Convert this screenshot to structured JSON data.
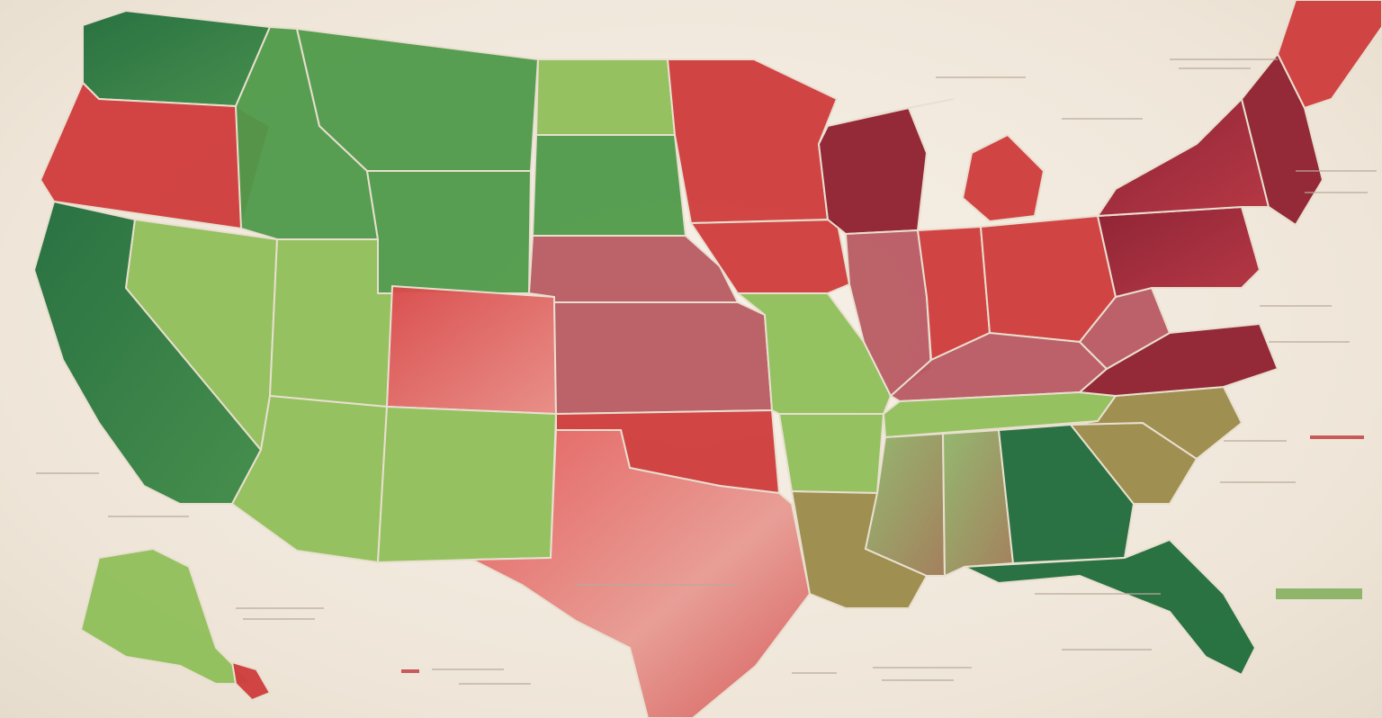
{
  "map": {
    "title": "",
    "subtitle": "",
    "colors": {
      "deep_green": "#1f6b3a",
      "mid_green": "#4f9a4a",
      "light_green": "#8fbf5a",
      "olive": "#9a8a48",
      "deep_red": "#8e1f2e",
      "mid_red": "#cf3b3b",
      "rose": "#b85a62",
      "background": "#f3ece2"
    },
    "states": [
      {
        "id": "WA",
        "fill": "deep_green"
      },
      {
        "id": "OR",
        "fill": "mid_red"
      },
      {
        "id": "CA",
        "fill": "deep_green"
      },
      {
        "id": "NV",
        "fill": "light_green"
      },
      {
        "id": "ID",
        "fill": "mid_green"
      },
      {
        "id": "MT",
        "fill": "mid_green"
      },
      {
        "id": "WY",
        "fill": "mid_green"
      },
      {
        "id": "UT",
        "fill": "light_green"
      },
      {
        "id": "CO",
        "fill": "mid_red"
      },
      {
        "id": "AZ",
        "fill": "light_green"
      },
      {
        "id": "NM",
        "fill": "light_green"
      },
      {
        "id": "ND",
        "fill": "light_green"
      },
      {
        "id": "SD",
        "fill": "mid_green"
      },
      {
        "id": "NE",
        "fill": "rose"
      },
      {
        "id": "KS",
        "fill": "rose"
      },
      {
        "id": "OK",
        "fill": "mid_red"
      },
      {
        "id": "TX",
        "fill": "mid_red"
      },
      {
        "id": "MN",
        "fill": "mid_red"
      },
      {
        "id": "IA",
        "fill": "mid_red"
      },
      {
        "id": "MO",
        "fill": "light_green"
      },
      {
        "id": "AR",
        "fill": "light_green"
      },
      {
        "id": "LA",
        "fill": "olive"
      },
      {
        "id": "WI",
        "fill": "deep_red"
      },
      {
        "id": "IL",
        "fill": "rose"
      },
      {
        "id": "MI",
        "fill": "mid_red"
      },
      {
        "id": "IN",
        "fill": "mid_red"
      },
      {
        "id": "OH",
        "fill": "mid_red"
      },
      {
        "id": "KY",
        "fill": "rose"
      },
      {
        "id": "TN",
        "fill": "light_green"
      },
      {
        "id": "MS",
        "fill": "olive"
      },
      {
        "id": "AL",
        "fill": "olive"
      },
      {
        "id": "GA",
        "fill": "deep_green"
      },
      {
        "id": "FL",
        "fill": "deep_green"
      },
      {
        "id": "SC",
        "fill": "olive"
      },
      {
        "id": "NC",
        "fill": "olive"
      },
      {
        "id": "VA",
        "fill": "deep_red"
      },
      {
        "id": "WV",
        "fill": "rose"
      },
      {
        "id": "PA",
        "fill": "deep_red"
      },
      {
        "id": "NY",
        "fill": "deep_red"
      },
      {
        "id": "NE_REGION",
        "fill": "deep_red"
      },
      {
        "id": "ME",
        "fill": "mid_red"
      },
      {
        "id": "AK",
        "fill": "light_green"
      },
      {
        "id": "HI",
        "fill": "mid_red"
      }
    ]
  }
}
